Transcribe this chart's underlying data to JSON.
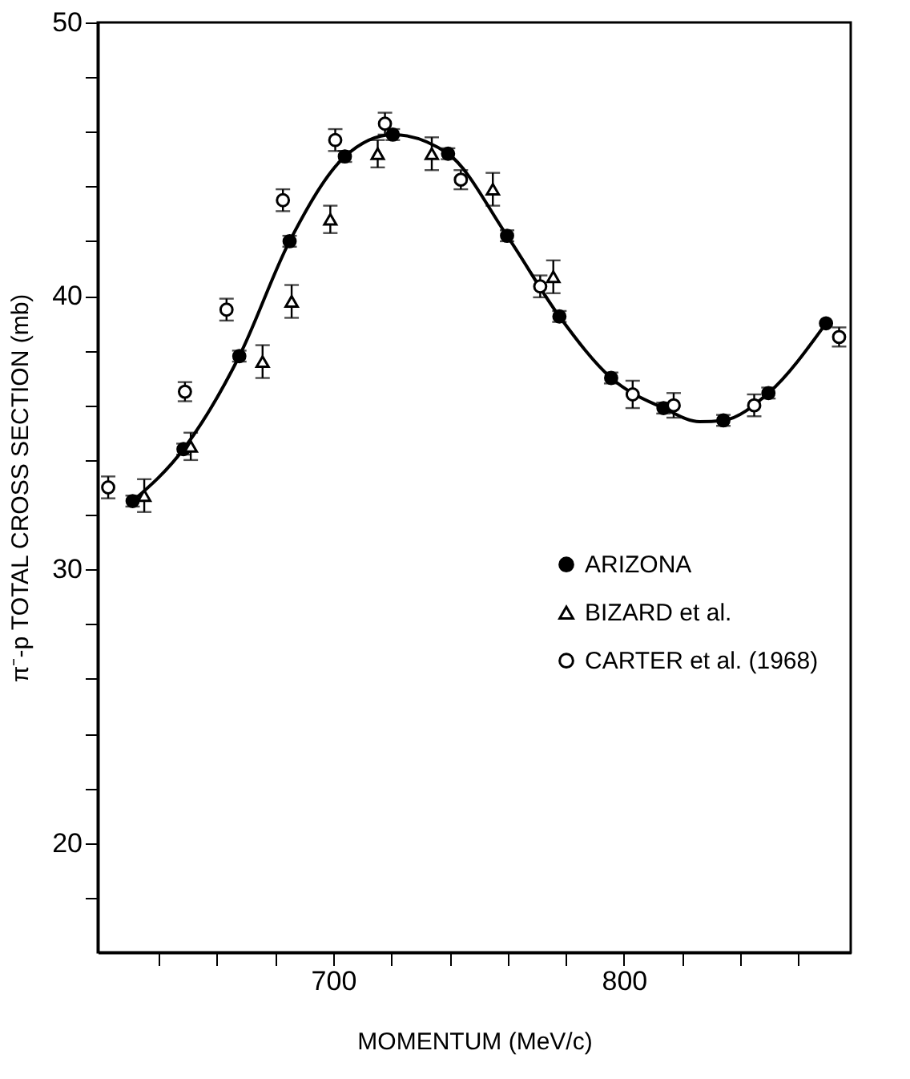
{
  "chart_data": {
    "type": "scatter",
    "xlabel": "MOMENTUM (MeV/c)",
    "ylabel": "π⁻-p TOTAL CROSS SECTION (mb)",
    "xlim": [
      619,
      878
    ],
    "ylim": [
      16,
      50
    ],
    "xticks": [
      {
        "value": 640,
        "label": null
      },
      {
        "value": 660,
        "label": null
      },
      {
        "value": 680,
        "label": null
      },
      700,
      {
        "value": 720,
        "label": null
      },
      {
        "value": 740,
        "label": null
      },
      {
        "value": 760,
        "label": null
      },
      {
        "value": 780,
        "label": null
      },
      800,
      {
        "value": 820,
        "label": null
      },
      {
        "value": 840,
        "label": null
      },
      {
        "value": 860,
        "label": null
      }
    ],
    "yticks": [
      {
        "value": 18,
        "label": null
      },
      20,
      {
        "value": 22,
        "label": null
      },
      {
        "value": 24,
        "label": null
      },
      {
        "value": 26,
        "label": null
      },
      {
        "value": 28,
        "label": null
      },
      30,
      {
        "value": 32,
        "label": null
      },
      {
        "value": 34,
        "label": null
      },
      {
        "value": 36,
        "label": null
      },
      {
        "value": 38,
        "label": null
      },
      40,
      {
        "value": 42,
        "label": null
      },
      {
        "value": 44,
        "label": null
      },
      {
        "value": 46,
        "label": null
      },
      {
        "value": 48,
        "label": null
      },
      50
    ],
    "grid": false,
    "legend": "right",
    "series": [
      {
        "type": "line",
        "color": "#000000",
        "line_style": "solid",
        "x": [
          631,
          648.5,
          667.7,
          685,
          704,
          720.5,
          739.5,
          759.8,
          777.8,
          795.6,
          813.6,
          826,
          834.2,
          849.7,
          869.5
        ],
        "values": [
          32.5,
          34.4,
          37.8,
          42.0,
          45.1,
          45.9,
          45.2,
          42.2,
          39.25,
          37.0,
          35.9,
          35.4,
          35.45,
          36.45,
          39.0
        ]
      },
      {
        "name": "ARIZONA",
        "color": "#000000",
        "marker": "circle",
        "x": [
          631,
          648.5,
          667.7,
          685,
          704,
          720.5,
          739.5,
          759.8,
          777.8,
          795.6,
          813.6,
          834.2,
          849.7,
          869.5
        ],
        "values": [
          32.5,
          34.4,
          37.8,
          42.0,
          45.1,
          45.9,
          45.2,
          42.2,
          39.25,
          37.0,
          35.9,
          35.45,
          36.45,
          39.0
        ],
        "errors": [
          0.2,
          0.2,
          0.2,
          0.2,
          0.2,
          0.2,
          0.2,
          0.2,
          0.2,
          0.2,
          0.2,
          0.2,
          0.2,
          null
        ]
      },
      {
        "name": "BIZARD et al.",
        "color": "#000000",
        "marker": "triangle",
        "x": [
          635,
          651,
          675.7,
          685.7,
          699,
          715.3,
          733.9,
          754.9,
          775.7
        ],
        "values": [
          32.7,
          34.5,
          37.6,
          39.8,
          42.8,
          45.2,
          45.2,
          43.9,
          40.7
        ],
        "errors": [
          0.6,
          0.5,
          0.6,
          0.6,
          0.5,
          0.5,
          0.6,
          0.6,
          0.6
        ]
      },
      {
        "name": "CARTER et al. (1968)",
        "color": "#000000",
        "marker": "circle",
        "x": [
          622.6,
          649,
          663.3,
          682.7,
          700.7,
          717.8,
          743.9,
          771.2,
          803,
          817.1,
          844.8,
          874
        ],
        "values": [
          33.0,
          36.5,
          39.5,
          43.5,
          45.7,
          46.3,
          44.25,
          40.35,
          36.4,
          36.0,
          36.0,
          38.5
        ],
        "errors": [
          0.4,
          0.35,
          0.4,
          0.4,
          0.4,
          0.4,
          0.35,
          0.4,
          0.5,
          0.45,
          0.4,
          0.35
        ]
      }
    ]
  }
}
